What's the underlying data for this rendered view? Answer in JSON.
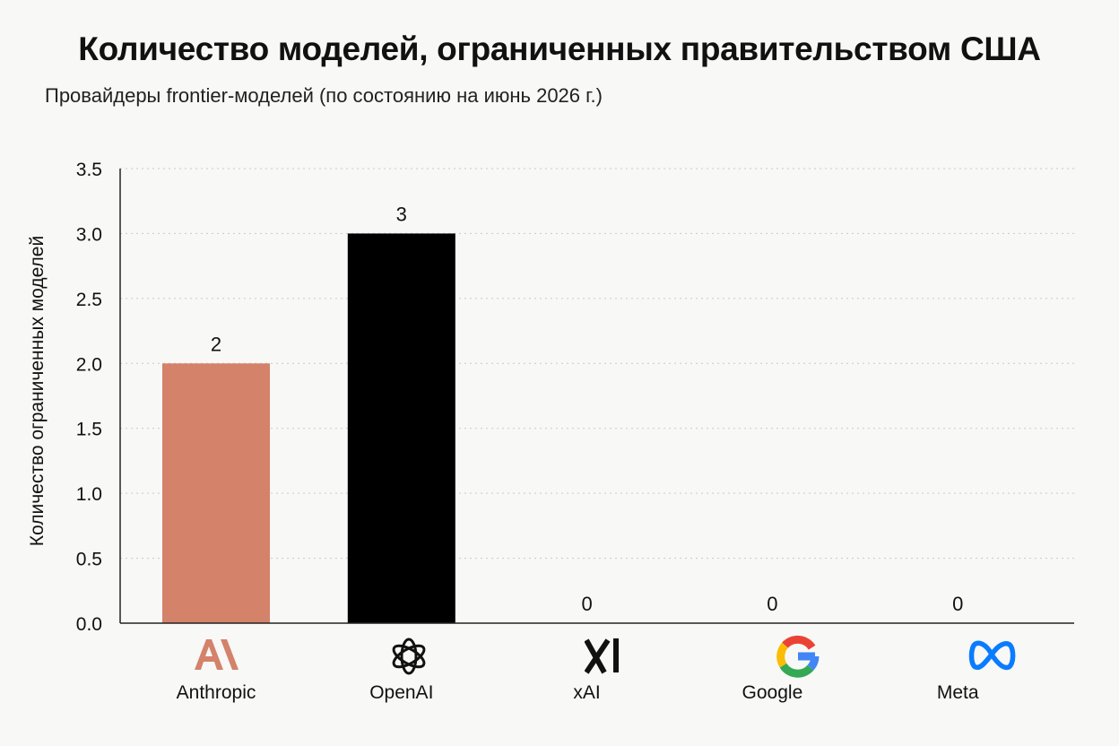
{
  "chart_data": {
    "type": "bar",
    "title": "Количество моделей, ограниченных правительством США",
    "subtitle": "Провайдеры frontier-моделей (по состоянию на июнь 2026 г.)",
    "xlabel": "",
    "ylabel": "Количество ограниченных моделей",
    "ylim": [
      0,
      3.5
    ],
    "yticks": [
      "0.0",
      "0.5",
      "1.0",
      "1.5",
      "2.0",
      "2.5",
      "3.0",
      "3.5"
    ],
    "grid": "horizontal dotted",
    "categories": [
      "Anthropic",
      "OpenAI",
      "xAI",
      "Google",
      "Meta"
    ],
    "values": [
      2,
      3,
      0,
      0,
      0
    ],
    "data_labels": [
      "2",
      "3",
      "0",
      "0",
      "0"
    ],
    "colors": [
      "#d4826a",
      "#000000",
      "#000000",
      "#000000",
      "#000000"
    ],
    "icons": [
      "anthropic-logo-icon",
      "openai-logo-icon",
      "xai-logo-icon",
      "google-logo-icon",
      "meta-logo-icon"
    ]
  }
}
